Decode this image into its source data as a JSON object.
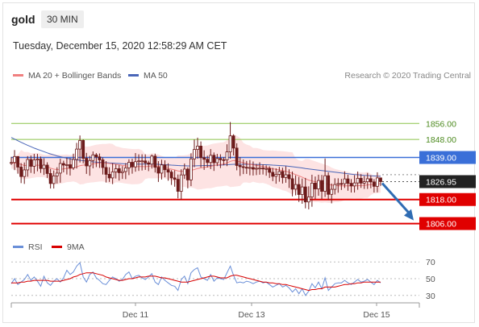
{
  "header": {
    "symbol": "gold",
    "timeframe": "30 MIN",
    "datetime": "Tuesday, December 15, 2020 12:58:29 AM CET"
  },
  "legend": {
    "ma20": "MA 20 + Bollinger Bands",
    "ma50": "MA 50",
    "credit": "Research © 2020 Trading Central",
    "rsi": "RSI",
    "ma9": "9MA"
  },
  "colors": {
    "ma20": "#f08080",
    "ma50": "#4a66b8",
    "band": "#fde3e3",
    "resistance": "#8bc34a",
    "pivot": "#3a6fd8",
    "support": "#e00000",
    "last": "#222222",
    "candle": "#6b1a1a",
    "rsi": "#6a8fd8",
    "rsi_ma": "#d80000",
    "arrow": "#2f6cb3"
  },
  "chart_data": [
    {
      "type": "candlestick",
      "name": "price",
      "y_range": [
        1801,
        1871
      ],
      "x_ticks": [
        "Dec 11",
        "Dec 13",
        "Dec 15"
      ],
      "levels": [
        {
          "label": "1856.00",
          "value": 1856.0,
          "kind": "resistance"
        },
        {
          "label": "1848.00",
          "value": 1848.0,
          "kind": "resistance"
        },
        {
          "label": "1839.00",
          "value": 1839.0,
          "kind": "pivot"
        },
        {
          "label": "1818.00",
          "value": 1818.0,
          "kind": "support"
        },
        {
          "label": "1806.00",
          "value": 1806.0,
          "kind": "support"
        }
      ],
      "last_price": {
        "label": "1826.95",
        "value": 1826.95
      },
      "projection": {
        "from": 1826.95,
        "to": 1806.0
      },
      "close": [
        1836.5,
        1839.5,
        1834.2,
        1829.5,
        1832.8,
        1838.0,
        1834.6,
        1837.8,
        1838.2,
        1833.5,
        1835.2,
        1831.0,
        1826.0,
        1829.8,
        1831.2,
        1836.0,
        1835.2,
        1835.4,
        1833.8,
        1838.0,
        1843.2,
        1847.5,
        1838.6,
        1834.8,
        1837.5,
        1840.3,
        1839.3,
        1837.8,
        1834.0,
        1830.6,
        1828.8,
        1831.8,
        1833.4,
        1831.4,
        1832.0,
        1833.8,
        1836.6,
        1834.3,
        1836.9,
        1837.3,
        1837.3,
        1836.3,
        1835.7,
        1839.7,
        1834.1,
        1831.2,
        1835.3,
        1832.9,
        1831.7,
        1828.8,
        1828.1,
        1822.1,
        1830.3,
        1833.2,
        1827.8,
        1838.3,
        1843.0,
        1844.7,
        1838.9,
        1838.1,
        1836.5,
        1840.1,
        1836.4,
        1838.5,
        1837.9,
        1837.8,
        1841.8,
        1849.8,
        1843.7,
        1835.0,
        1834.4,
        1834.1,
        1834.0,
        1834.0,
        1833.2,
        1833.6,
        1833.7,
        1833.4,
        1833.5,
        1831.6,
        1829.6,
        1830.6,
        1832.0,
        1829.0,
        1830.4,
        1828.4,
        1823.2,
        1825.5,
        1820.5,
        1824.3,
        1816.8,
        1819.3,
        1826.2,
        1823.3,
        1827.5,
        1822.1,
        1829.9,
        1820.6,
        1823.1,
        1825.5,
        1826.0,
        1825.9,
        1828.3,
        1826.1,
        1824.8,
        1826.3,
        1828.6,
        1826.2,
        1826.9,
        1828.4,
        1826.8,
        1824.6,
        1828.8,
        1826.95
      ],
      "high": [
        1839.3,
        1842.7,
        1838.2,
        1836.2,
        1836.5,
        1839.7,
        1840.0,
        1840.8,
        1840.8,
        1839.5,
        1838.6,
        1836.6,
        1833.3,
        1832.5,
        1834.1,
        1838.4,
        1837.4,
        1838.9,
        1838.7,
        1840.9,
        1846.3,
        1850.0,
        1848.0,
        1841.3,
        1839.8,
        1842.0,
        1841.2,
        1841.0,
        1839.0,
        1837.2,
        1834.1,
        1836.1,
        1835.6,
        1835.2,
        1834.7,
        1836.2,
        1838.1,
        1838.4,
        1841.2,
        1840.6,
        1840.6,
        1840.6,
        1837.4,
        1840.5,
        1840.9,
        1837.2,
        1837.9,
        1837.6,
        1836.1,
        1832.7,
        1832.6,
        1830.5,
        1833.1,
        1836.0,
        1834.1,
        1841.1,
        1848.0,
        1848.9,
        1847.0,
        1842.6,
        1839.9,
        1843.2,
        1841.5,
        1840.8,
        1840.6,
        1839.1,
        1845.6,
        1856.7,
        1850.6,
        1846.1,
        1839.2,
        1838.0,
        1837.3,
        1837.7,
        1837.0,
        1835.8,
        1836.6,
        1835.6,
        1835.1,
        1834.6,
        1833.8,
        1833.6,
        1834.3,
        1833.9,
        1834.6,
        1833.1,
        1832.0,
        1830.1,
        1829.3,
        1828.5,
        1828.8,
        1824.6,
        1830.4,
        1829.5,
        1830.4,
        1830.3,
        1838.5,
        1831.6,
        1826.0,
        1828.6,
        1828.6,
        1828.3,
        1832.1,
        1830.4,
        1828.2,
        1830.2,
        1832.0,
        1830.7,
        1829.8,
        1831.3,
        1830.1,
        1828.2,
        1831.6,
        1829.0
      ],
      "low": [
        1835.3,
        1832.7,
        1830.9,
        1826.2,
        1825.8,
        1829.4,
        1831.3,
        1830.9,
        1832.1,
        1831.3,
        1830.3,
        1828.8,
        1823.5,
        1823.5,
        1826.0,
        1826.4,
        1831.6,
        1830.5,
        1830.0,
        1832.8,
        1833.5,
        1836.5,
        1836.1,
        1830.8,
        1829.9,
        1833.6,
        1834.2,
        1833.8,
        1830.5,
        1826.5,
        1826.8,
        1825.7,
        1828.5,
        1827.5,
        1828.3,
        1828.2,
        1830.2,
        1830.9,
        1831.9,
        1832.3,
        1832.5,
        1832.8,
        1832.2,
        1833.5,
        1831.5,
        1826.8,
        1828.0,
        1829.1,
        1827.4,
        1825.3,
        1824.4,
        1818.6,
        1818.0,
        1828.3,
        1823.6,
        1824.7,
        1834.2,
        1838.4,
        1834.0,
        1832.8,
        1834.0,
        1833.2,
        1832.3,
        1834.7,
        1833.7,
        1835.1,
        1834.7,
        1838.4,
        1840.0,
        1832.6,
        1829.8,
        1830.7,
        1830.8,
        1830.1,
        1830.0,
        1830.2,
        1830.4,
        1830.5,
        1829.9,
        1828.8,
        1827.2,
        1825.9,
        1826.9,
        1826.0,
        1826.4,
        1823.8,
        1819.6,
        1820.1,
        1816.8,
        1815.9,
        1813.6,
        1813.1,
        1814.4,
        1818.3,
        1819.9,
        1818.2,
        1819.3,
        1817.7,
        1816.1,
        1820.5,
        1821.4,
        1822.8,
        1823.8,
        1822.4,
        1821.5,
        1821.5,
        1822.9,
        1823.8,
        1823.3,
        1823.3,
        1823.6,
        1821.5,
        1821.6,
        1824.8
      ],
      "ma20": [
        1836.0,
        1836.3,
        1836.1,
        1835.5,
        1835.0,
        1835.1,
        1834.9,
        1835.0,
        1835.2,
        1835.0,
        1834.8,
        1834.4,
        1833.7,
        1833.2,
        1833.0,
        1833.1,
        1833.3,
        1833.6,
        1833.5,
        1833.8,
        1834.3,
        1834.9,
        1835.2,
        1835.3,
        1835.5,
        1835.8,
        1836.1,
        1836.3,
        1836.4,
        1836.2,
        1836.0,
        1835.8,
        1835.6,
        1835.4,
        1835.0,
        1834.8,
        1834.6,
        1834.4,
        1834.4,
        1834.5,
        1834.5,
        1834.4,
        1834.6,
        1834.8,
        1834.8,
        1834.6,
        1834.3,
        1833.9,
        1833.5,
        1833.2,
        1832.8,
        1832.3,
        1832.1,
        1832.2,
        1832.1,
        1832.6,
        1833.0,
        1833.5,
        1833.8,
        1834.1,
        1834.3,
        1834.6,
        1835.0,
        1835.3,
        1835.5,
        1835.7,
        1836.3,
        1837.1,
        1837.5,
        1837.2,
        1836.8,
        1836.4,
        1836.0,
        1835.6,
        1835.3,
        1835.1,
        1834.8,
        1834.5,
        1834.2,
        1833.8,
        1833.4,
        1833.1,
        1832.8,
        1832.4,
        1832.1,
        1831.6,
        1831.0,
        1830.5,
        1829.8,
        1829.2,
        1828.4,
        1827.7,
        1827.3,
        1826.9,
        1826.6,
        1826.2,
        1826.0,
        1825.6,
        1825.2,
        1825.0,
        1824.8,
        1824.8,
        1824.9,
        1824.8,
        1824.8,
        1824.8,
        1824.9,
        1825.0,
        1825.1,
        1825.3,
        1825.5,
        1825.6,
        1825.8,
        1825.9
      ],
      "ma50": [
        1849.0,
        1848.2,
        1847.4,
        1846.6,
        1845.8,
        1845.1,
        1844.4,
        1843.7,
        1843.1,
        1842.5,
        1841.9,
        1841.3,
        1840.8,
        1840.3,
        1839.8,
        1839.4,
        1839.0,
        1838.6,
        1838.3,
        1838.0,
        1837.8,
        1837.6,
        1837.4,
        1837.2,
        1837.0,
        1836.8,
        1836.7,
        1836.6,
        1836.5,
        1836.4,
        1836.3,
        1836.2,
        1836.1,
        1836.0,
        1835.9,
        1835.8,
        1835.8,
        1835.7,
        1835.7,
        1835.7,
        1835.7,
        1835.7,
        1835.7,
        1835.7,
        1835.7,
        1835.6,
        1835.5,
        1835.4,
        1835.3,
        1835.2,
        1835.1,
        1835.0,
        1834.9,
        1834.9,
        1834.8,
        1834.8,
        1834.8,
        1834.9,
        1834.9,
        1835.0,
        1835.0,
        1835.0,
        1835.1,
        1835.2,
        1835.2,
        1835.3,
        1835.4,
        1835.5,
        1835.6,
        1835.6,
        1835.6,
        1835.6,
        1835.6,
        1835.6,
        1835.6,
        1835.5,
        1835.5,
        1835.4,
        1835.4,
        1835.3,
        1835.2,
        1835.1,
        1835.0,
        1834.9,
        1834.8,
        1834.6,
        1834.4,
        1834.2,
        1834.0,
        1833.8,
        1833.5,
        1833.3,
        1833.1,
        1832.9,
        1832.7,
        1832.5,
        1832.3,
        1832.1,
        1831.9,
        1831.7,
        1831.5,
        1831.3,
        1831.1,
        1830.9,
        1830.7,
        1830.5,
        1830.4,
        1830.2,
        1830.1,
        1830.0,
        1829.9,
        1829.8,
        1829.7,
        1829.6
      ]
    },
    {
      "type": "line",
      "name": "oscillator",
      "y_range": [
        25,
        75
      ],
      "y_ticks": [
        70,
        50,
        30
      ],
      "series": [
        {
          "name": "RSI",
          "values": [
            44,
            50,
            43,
            46,
            49,
            55,
            48,
            52,
            47,
            41,
            53,
            45,
            42,
            47,
            50,
            46,
            51,
            60,
            55,
            58,
            65,
            69,
            52,
            46,
            55,
            58,
            51,
            48,
            44,
            43,
            48,
            52,
            50,
            47,
            49,
            55,
            58,
            50,
            53,
            54,
            51,
            49,
            52,
            56,
            46,
            43,
            52,
            48,
            45,
            42,
            41,
            36,
            49,
            53,
            44,
            57,
            61,
            63,
            52,
            50,
            48,
            55,
            47,
            51,
            50,
            49,
            57,
            65,
            54,
            45,
            46,
            45,
            47,
            46,
            44,
            46,
            47,
            45,
            46,
            43,
            40,
            42,
            44,
            40,
            42,
            39,
            34,
            38,
            32,
            38,
            30,
            35,
            44,
            39,
            46,
            38,
            51,
            36,
            40,
            44,
            45,
            45,
            48,
            45,
            43,
            46,
            49,
            46,
            47,
            49,
            46,
            43,
            48,
            45
          ]
        },
        {
          "name": "9MA",
          "values": [
            45,
            45,
            45,
            46,
            46,
            47,
            47,
            48,
            48,
            48,
            48,
            48,
            47,
            47,
            47,
            47,
            48,
            49,
            50,
            52,
            53,
            55,
            56,
            57,
            57,
            57,
            56,
            55,
            54,
            52,
            51,
            50,
            49,
            48,
            48,
            49,
            50,
            50,
            51,
            52,
            52,
            52,
            53,
            53,
            53,
            52,
            51,
            51,
            50,
            49,
            48,
            47,
            46,
            46,
            46,
            47,
            48,
            49,
            50,
            51,
            52,
            53,
            53,
            52,
            51,
            51,
            51,
            53,
            54,
            54,
            53,
            52,
            51,
            50,
            49,
            48,
            47,
            46,
            46,
            45,
            45,
            44,
            44,
            43,
            43,
            42,
            41,
            40,
            39,
            38,
            37,
            36,
            37,
            37,
            38,
            38,
            40,
            40,
            40,
            40,
            41,
            42,
            43,
            43,
            44,
            44,
            45,
            45,
            46,
            46,
            46,
            46,
            46,
            46
          ]
        }
      ]
    }
  ]
}
